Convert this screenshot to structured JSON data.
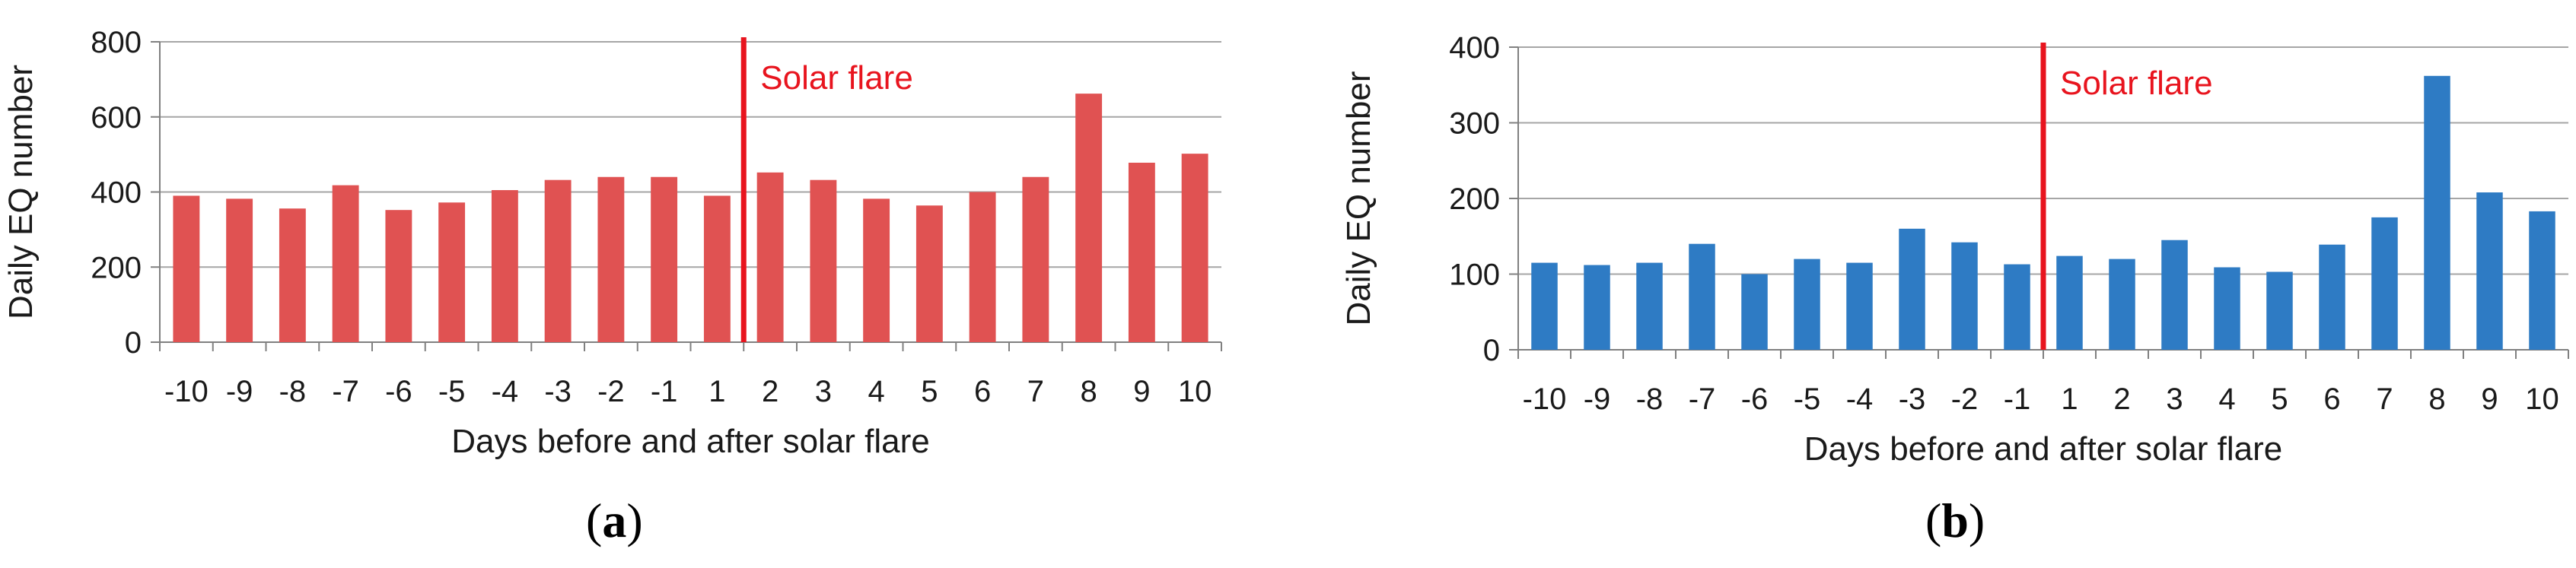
{
  "chart_data": [
    {
      "type": "bar",
      "panel_label_open": "(",
      "panel_label_letter": "a",
      "panel_label_close": ")",
      "categories": [
        "-10",
        "-9",
        "-8",
        "-7",
        "-6",
        "-5",
        "-4",
        "-3",
        "-2",
        "-1",
        "1",
        "2",
        "3",
        "4",
        "5",
        "6",
        "7",
        "8",
        "9",
        "10"
      ],
      "values": [
        390,
        382,
        356,
        418,
        352,
        372,
        405,
        432,
        440,
        440,
        390,
        452,
        432,
        382,
        364,
        400,
        440,
        662,
        478,
        502
      ],
      "xlabel": "Days before and after solar flare",
      "ylabel": "Daily EQ number",
      "ylim": [
        0,
        800
      ],
      "yticks": [
        0,
        200,
        400,
        600,
        800
      ],
      "grid": true,
      "bar_color": "#e05252",
      "annotation": {
        "label": "Solar flare",
        "color": "#e8141e",
        "after_category": "1"
      }
    },
    {
      "type": "bar",
      "panel_label_open": "(",
      "panel_label_letter": "b",
      "panel_label_close": ")",
      "categories": [
        "-10",
        "-9",
        "-8",
        "-7",
        "-6",
        "-5",
        "-4",
        "-3",
        "-2",
        "-1",
        "1",
        "2",
        "3",
        "4",
        "5",
        "6",
        "7",
        "8",
        "9",
        "10"
      ],
      "values": [
        115,
        112,
        115,
        140,
        100,
        120,
        115,
        160,
        142,
        113,
        124,
        120,
        145,
        109,
        103,
        139,
        175,
        362,
        208,
        183
      ],
      "xlabel": "Days before and after solar flare",
      "ylabel": "Daily EQ number",
      "ylim": [
        0,
        400
      ],
      "yticks": [
        0,
        100,
        200,
        300,
        400
      ],
      "grid": true,
      "bar_color": "#2e7bc4",
      "annotation": {
        "label": "Solar flare",
        "color": "#e8141e",
        "after_category": "-1"
      }
    }
  ]
}
